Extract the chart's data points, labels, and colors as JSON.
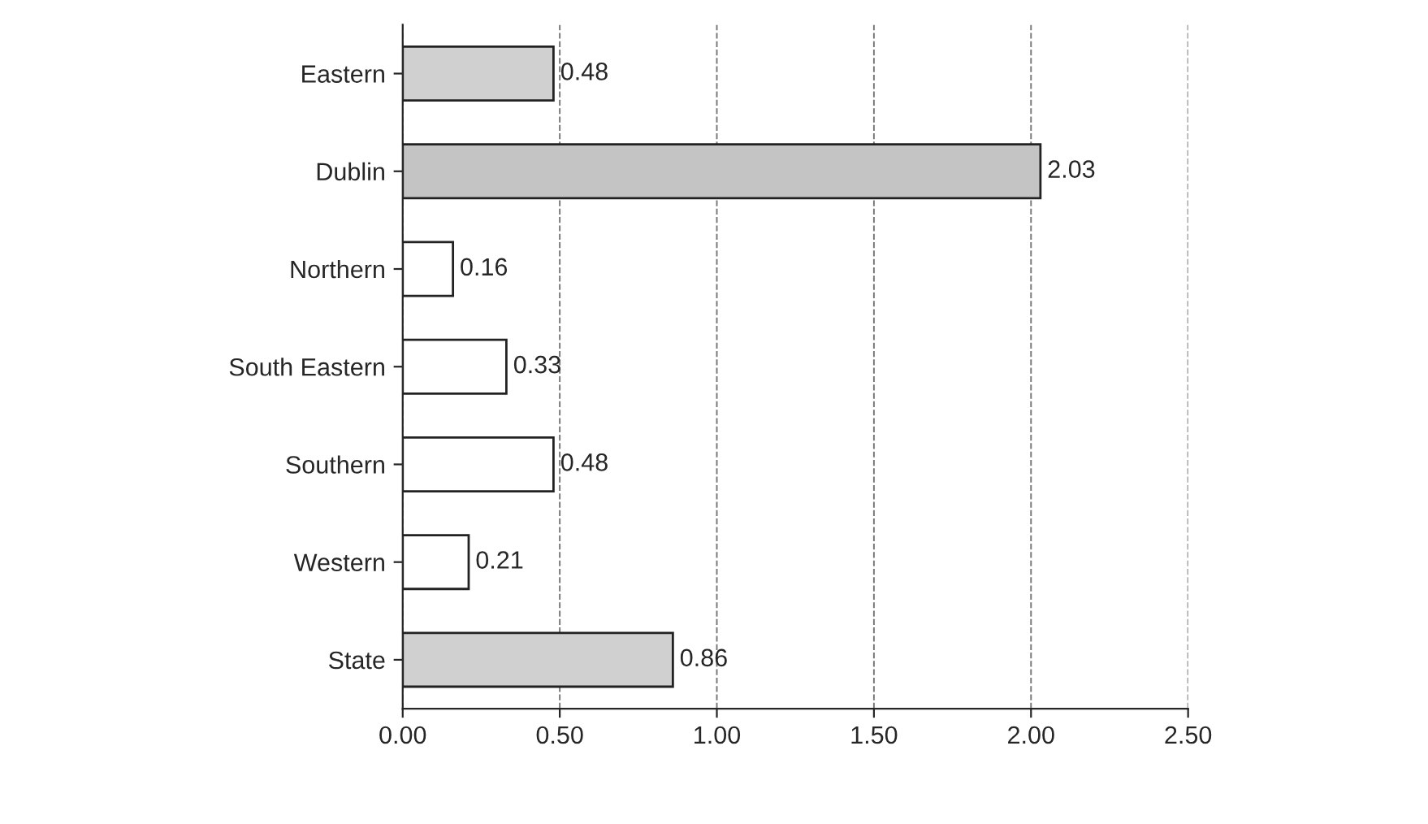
{
  "chart_data": {
    "type": "bar",
    "orientation": "horizontal",
    "categories": [
      "Eastern",
      "Dublin",
      "Northern",
      "South Eastern",
      "Southern",
      "Western",
      "State"
    ],
    "values": [
      0.48,
      2.03,
      0.16,
      0.33,
      0.48,
      0.21,
      0.86
    ],
    "colors": [
      "#d0d0d0",
      "#c4c4c4",
      "#ffffff",
      "#ffffff",
      "#ffffff",
      "#ffffff",
      "#d0d0d0"
    ],
    "value_labels": [
      "0.48",
      "2.03",
      "0.16",
      "0.33",
      "0.48",
      "0.21",
      "0.86"
    ],
    "xlim": [
      0,
      2.5
    ],
    "xticks": [
      {
        "value": 0,
        "label": "0.00"
      },
      {
        "value": 0.5,
        "label": "0.50"
      },
      {
        "value": 1,
        "label": "1.00"
      },
      {
        "value": 1.5,
        "label": "1.50"
      },
      {
        "value": 2,
        "label": "2.00"
      },
      {
        "value": 2.5,
        "label": "2.50"
      }
    ],
    "grid": "x",
    "line_style": "dashed"
  }
}
